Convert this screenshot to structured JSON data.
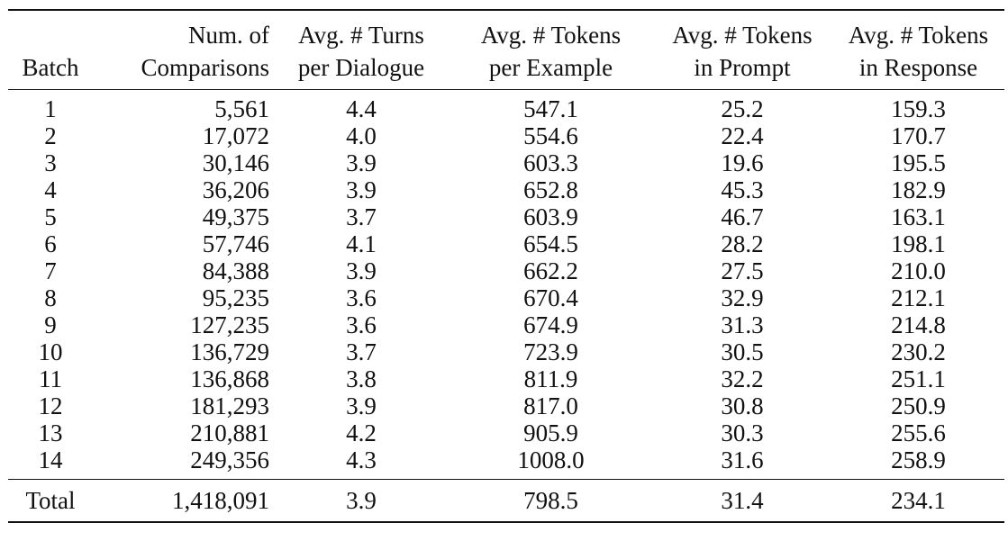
{
  "table": {
    "headers": {
      "batch": [
        "",
        "Batch"
      ],
      "comparisons": [
        "Num. of",
        "Comparisons"
      ],
      "turns": [
        "Avg. # Turns",
        "per Dialogue"
      ],
      "tokens_example": [
        "Avg. # Tokens",
        "per Example"
      ],
      "tokens_prompt": [
        "Avg. # Tokens",
        "in Prompt"
      ],
      "tokens_response": [
        "Avg. # Tokens",
        "in Response"
      ]
    },
    "rows": [
      [
        "1",
        "5,561",
        "4.4",
        "547.1",
        "25.2",
        "159.3"
      ],
      [
        "2",
        "17,072",
        "4.0",
        "554.6",
        "22.4",
        "170.7"
      ],
      [
        "3",
        "30,146",
        "3.9",
        "603.3",
        "19.6",
        "195.5"
      ],
      [
        "4",
        "36,206",
        "3.9",
        "652.8",
        "45.3",
        "182.9"
      ],
      [
        "5",
        "49,375",
        "3.7",
        "603.9",
        "46.7",
        "163.1"
      ],
      [
        "6",
        "57,746",
        "4.1",
        "654.5",
        "28.2",
        "198.1"
      ],
      [
        "7",
        "84,388",
        "3.9",
        "662.2",
        "27.5",
        "210.0"
      ],
      [
        "8",
        "95,235",
        "3.6",
        "670.4",
        "32.9",
        "212.1"
      ],
      [
        "9",
        "127,235",
        "3.6",
        "674.9",
        "31.3",
        "214.8"
      ],
      [
        "10",
        "136,729",
        "3.7",
        "723.9",
        "30.5",
        "230.2"
      ],
      [
        "11",
        "136,868",
        "3.8",
        "811.9",
        "32.2",
        "251.1"
      ],
      [
        "12",
        "181,293",
        "3.9",
        "817.0",
        "30.8",
        "250.9"
      ],
      [
        "13",
        "210,881",
        "4.2",
        "905.9",
        "30.3",
        "255.6"
      ],
      [
        "14",
        "249,356",
        "4.3",
        "1008.0",
        "31.6",
        "258.9"
      ]
    ],
    "total": [
      "Total",
      "1,418,091",
      "3.9",
      "798.5",
      "31.4",
      "234.1"
    ]
  }
}
